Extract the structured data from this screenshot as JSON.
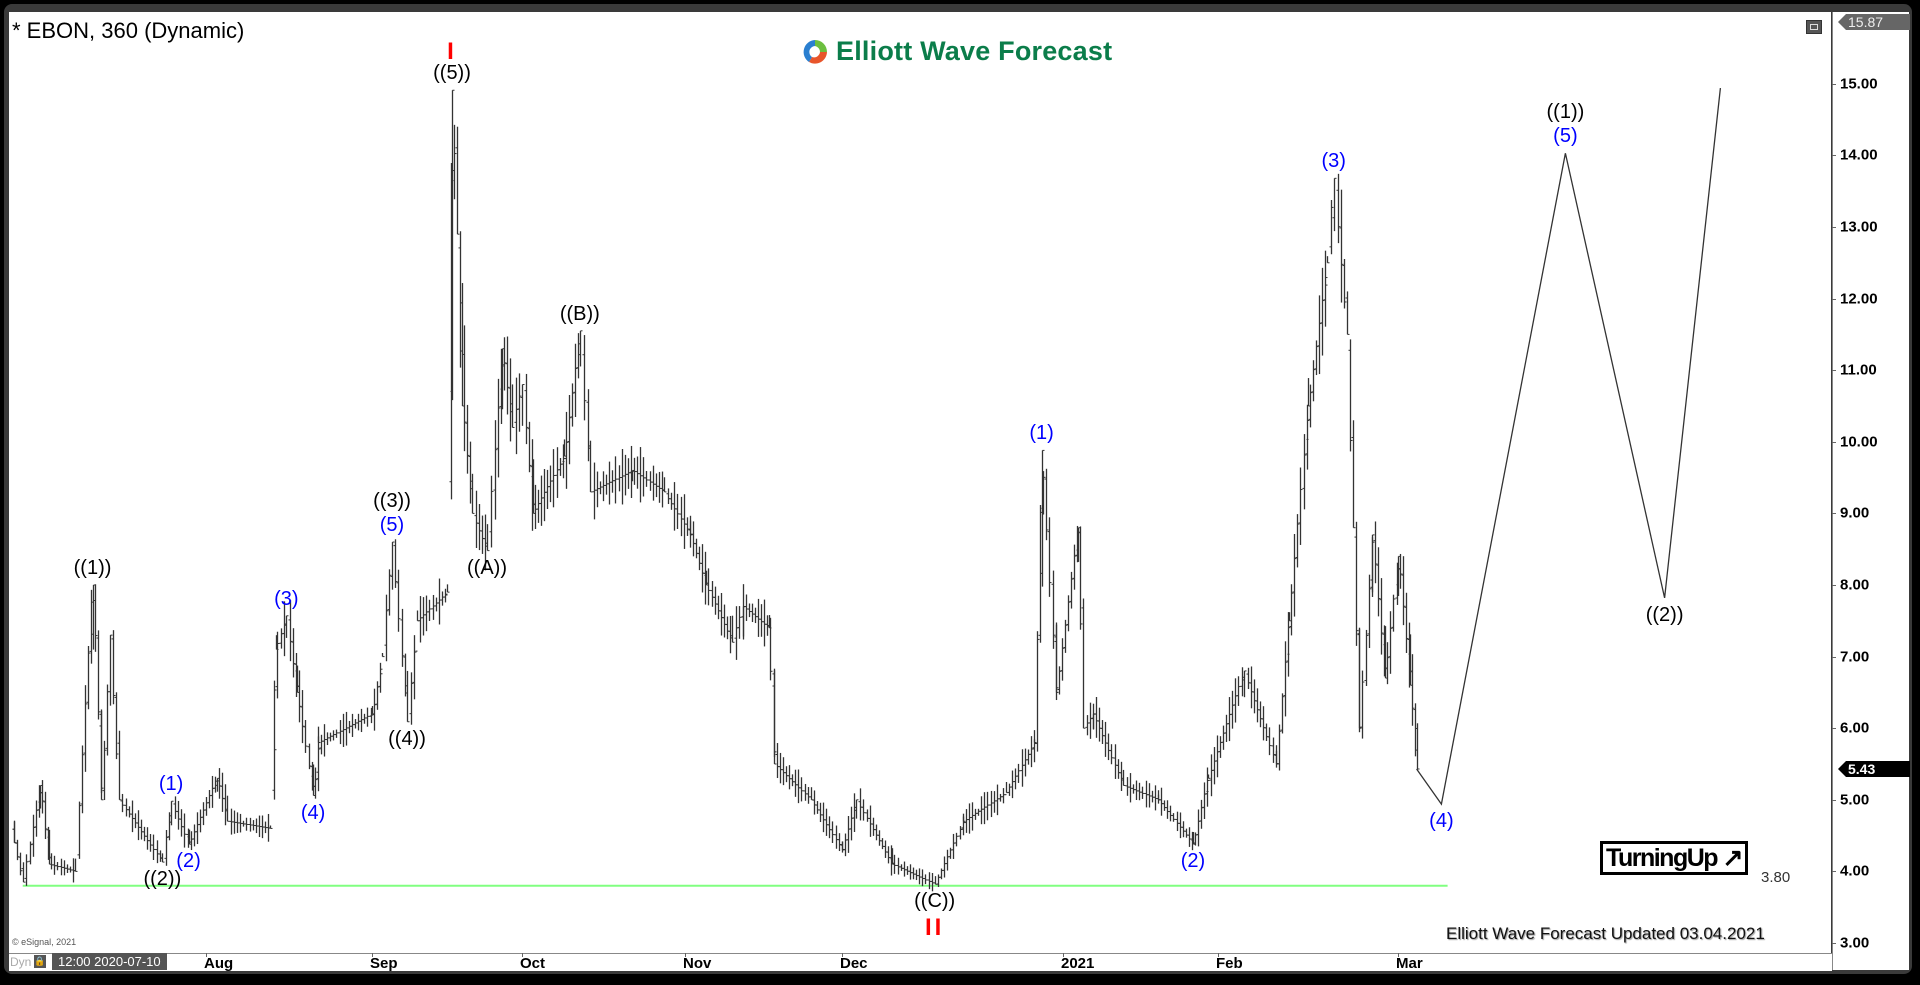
{
  "header": {
    "title": "* EBON, 360 (Dynamic)",
    "logo_text": "Elliott Wave Forecast"
  },
  "footer": {
    "dyn_label": "Dyn",
    "lock_icon": "lock-icon",
    "start_datetime": "12:00 2020-07-10",
    "copyright": "© eSignal, 2021",
    "updated_text": "Elliott Wave Forecast Updated 03.04.2021",
    "badge": "TurningUp ↗"
  },
  "price_axis": {
    "top_value": "15.87",
    "last_price": "5.43"
  },
  "colors": {
    "bars": "#333333",
    "support": "#80ff80",
    "wave_black": "#000000",
    "wave_blue": "#0000ff",
    "wave_red": "#ff0000",
    "logo_green": "#0b7d4a"
  },
  "chart_data": {
    "type": "ohlc-bar",
    "symbol": "EBON",
    "interval": "360",
    "ylim": [
      3.0,
      15.87
    ],
    "y_ticks": [
      "3.00",
      "4.00",
      "5.00",
      "6.00",
      "7.00",
      "8.00",
      "9.00",
      "10.00",
      "11.00",
      "12.00",
      "13.00",
      "14.00",
      "15.00"
    ],
    "x_ticks": [
      {
        "date": "2020-08-01",
        "label": "Aug"
      },
      {
        "date": "2020-09-01",
        "label": "Sep"
      },
      {
        "date": "2020-10-01",
        "label": "Oct"
      },
      {
        "date": "2020-11-01",
        "label": "Nov"
      },
      {
        "date": "2020-12-01",
        "label": "Dec"
      },
      {
        "date": "2021-01-01",
        "label": "2021"
      },
      {
        "date": "2021-02-01",
        "label": "Feb"
      },
      {
        "date": "2021-03-01",
        "label": "Mar"
      }
    ],
    "price_path": [
      [
        "2020-07-10",
        4.4
      ],
      [
        "2020-07-11",
        3.85
      ],
      [
        "2020-07-13",
        5.2
      ],
      [
        "2020-07-14",
        4.1
      ],
      [
        "2020-07-17",
        4.0
      ],
      [
        "2020-07-19",
        8.0
      ],
      [
        "2020-07-20",
        5.0
      ],
      [
        "2020-07-21",
        7.3
      ],
      [
        "2020-07-22",
        5.0
      ],
      [
        "2020-07-27",
        4.13
      ],
      [
        "2020-07-28",
        4.98
      ],
      [
        "2020-07-30",
        4.38
      ],
      [
        "2020-08-03",
        5.3
      ],
      [
        "2020-08-05",
        4.7
      ],
      [
        "2020-08-13",
        4.6
      ],
      [
        "2020-08-14",
        7.1
      ],
      [
        "2020-08-16",
        7.57
      ],
      [
        "2020-08-18",
        6.5
      ],
      [
        "2020-08-21",
        5.06
      ],
      [
        "2020-08-22",
        5.8
      ],
      [
        "2020-09-01",
        6.2
      ],
      [
        "2020-09-03",
        7.0
      ],
      [
        "2020-09-05",
        8.6
      ],
      [
        "2020-09-08",
        6.09
      ],
      [
        "2020-09-10",
        7.5
      ],
      [
        "2020-09-16",
        7.9
      ],
      [
        "2020-09-17",
        14.91
      ],
      [
        "2020-09-18",
        12.9
      ],
      [
        "2020-09-19",
        10.5
      ],
      [
        "2020-09-21",
        9.0
      ],
      [
        "2020-09-24",
        8.48
      ],
      [
        "2020-09-27",
        11.3
      ],
      [
        "2020-09-29",
        10.2
      ],
      [
        "2020-10-01",
        10.8
      ],
      [
        "2020-10-03",
        9.0
      ],
      [
        "2020-10-09",
        9.8
      ],
      [
        "2020-10-12",
        11.55
      ],
      [
        "2020-10-14",
        9.3
      ],
      [
        "2020-10-22",
        9.6
      ],
      [
        "2020-10-28",
        9.3
      ],
      [
        "2020-11-02",
        8.7
      ],
      [
        "2020-11-05",
        8.0
      ],
      [
        "2020-11-10",
        7.2
      ],
      [
        "2020-11-12",
        7.7
      ],
      [
        "2020-11-17",
        7.4
      ],
      [
        "2020-11-18",
        5.5
      ],
      [
        "2020-11-25",
        5.0
      ],
      [
        "2020-12-01",
        4.3
      ],
      [
        "2020-12-03",
        5.0
      ],
      [
        "2020-12-08",
        4.1
      ],
      [
        "2020-12-14",
        3.82
      ],
      [
        "2020-12-18",
        4.7
      ],
      [
        "2020-12-24",
        5.1
      ],
      [
        "2020-12-28",
        5.8
      ],
      [
        "2020-12-29",
        9.88
      ],
      [
        "2020-12-31",
        6.5
      ],
      [
        "2021-01-04",
        8.8
      ],
      [
        "2021-01-05",
        6.0
      ],
      [
        "2021-01-07",
        6.2
      ],
      [
        "2021-01-13",
        5.2
      ],
      [
        "2021-01-20",
        5.0
      ],
      [
        "2021-01-27",
        4.38
      ],
      [
        "2021-01-30",
        5.3
      ],
      [
        "2021-02-05",
        6.8
      ],
      [
        "2021-02-10",
        5.5
      ],
      [
        "2021-02-12",
        7.5
      ],
      [
        "2021-02-15",
        10.5
      ],
      [
        "2021-02-18",
        12.5
      ],
      [
        "2021-02-19",
        13.68
      ],
      [
        "2021-02-21",
        11.5
      ],
      [
        "2021-02-22",
        8.8
      ],
      [
        "2021-02-23",
        6.0
      ],
      [
        "2021-02-25",
        8.7
      ],
      [
        "2021-02-27",
        6.7
      ],
      [
        "2021-03-01",
        8.4
      ],
      [
        "2021-03-03",
        6.6
      ],
      [
        "2021-03-04",
        5.43
      ]
    ],
    "support_line": {
      "value": 3.8,
      "label": "3.80",
      "from": "2020-07-11",
      "to": "2021-03-09"
    },
    "forecast_path": [
      [
        "2021-03-04",
        5.43
      ],
      [
        "2021-03-08",
        4.94
      ],
      [
        "2021-03-28",
        14.03
      ],
      [
        "2021-04-13",
        7.82
      ],
      [
        "2021-04-22",
        14.94
      ]
    ],
    "wave_labels": [
      {
        "text": "((1))",
        "date": "2020-07-19",
        "price": 8.0,
        "color": "#000000",
        "pos": "above"
      },
      {
        "text": "((2))",
        "date": "2020-07-27",
        "price": 4.13,
        "color": "#000000",
        "pos": "below"
      },
      {
        "text": "(1)",
        "date": "2020-07-28",
        "price": 4.98,
        "color": "#0000ff",
        "pos": "above"
      },
      {
        "text": "(2)",
        "date": "2020-07-30",
        "price": 4.38,
        "color": "#0000ff",
        "pos": "below"
      },
      {
        "text": "(3)",
        "date": "2020-08-16",
        "price": 7.57,
        "color": "#0000ff",
        "pos": "above"
      },
      {
        "text": "(4)",
        "date": "2020-08-21",
        "price": 5.06,
        "color": "#0000ff",
        "pos": "below"
      },
      {
        "text": "(5)",
        "date": "2020-09-05",
        "price": 8.6,
        "color": "#0000ff",
        "pos": "above"
      },
      {
        "text": "((3))",
        "date": "2020-09-05",
        "price": 8.6,
        "color": "#000000",
        "pos": "above2"
      },
      {
        "text": "((4))",
        "date": "2020-09-08",
        "price": 6.09,
        "color": "#000000",
        "pos": "below"
      },
      {
        "text": "((5))",
        "date": "2020-09-17",
        "price": 14.91,
        "color": "#000000",
        "pos": "above"
      },
      {
        "text": "I",
        "date": "2020-09-17",
        "price": 14.91,
        "color": "#ff0000",
        "pos": "above2"
      },
      {
        "text": "((A))",
        "date": "2020-09-24",
        "price": 8.48,
        "color": "#000000",
        "pos": "below"
      },
      {
        "text": "((B))",
        "date": "2020-10-12",
        "price": 11.55,
        "color": "#000000",
        "pos": "above"
      },
      {
        "text": "((C))",
        "date": "2020-12-14",
        "price": 3.82,
        "color": "#000000",
        "pos": "below"
      },
      {
        "text": "II",
        "date": "2020-12-14",
        "price": 3.82,
        "color": "#ff0000",
        "pos": "below2"
      },
      {
        "text": "(1)",
        "date": "2020-12-29",
        "price": 9.88,
        "color": "#0000ff",
        "pos": "above"
      },
      {
        "text": "(2)",
        "date": "2021-01-27",
        "price": 4.38,
        "color": "#0000ff",
        "pos": "below"
      },
      {
        "text": "(3)",
        "date": "2021-02-19",
        "price": 13.68,
        "color": "#0000ff",
        "pos": "above"
      },
      {
        "text": "(4)",
        "date": "2021-03-08",
        "price": 4.94,
        "color": "#0000ff",
        "pos": "below"
      },
      {
        "text": "(5)",
        "date": "2021-03-28",
        "price": 14.03,
        "color": "#0000ff",
        "pos": "above"
      },
      {
        "text": "((1))",
        "date": "2021-03-28",
        "price": 14.03,
        "color": "#000000",
        "pos": "above2"
      },
      {
        "text": "((2))",
        "date": "2021-04-13",
        "price": 7.82,
        "color": "#000000",
        "pos": "below"
      }
    ]
  }
}
